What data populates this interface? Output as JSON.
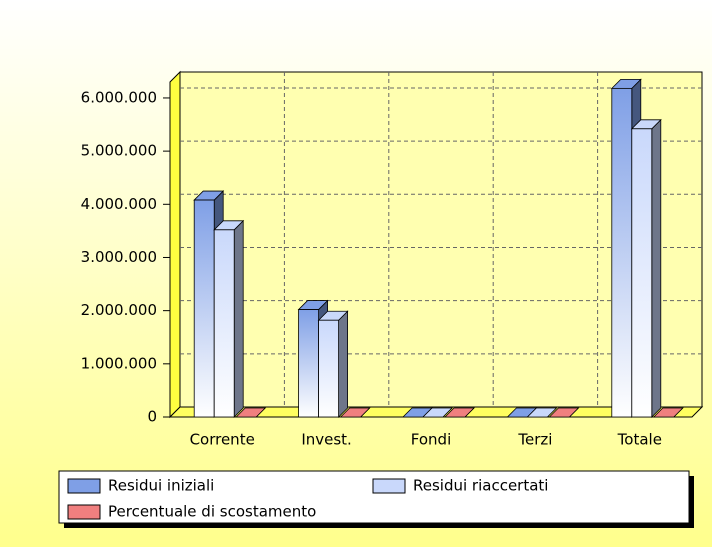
{
  "chart_data": {
    "type": "bar3d",
    "categories": [
      "Corrente",
      "Invest.",
      "Fondi",
      "Terzi",
      "Totale"
    ],
    "series": [
      {
        "name": "Residui iniziali",
        "color": "#7f9fe6",
        "values": [
          4080000,
          2020000,
          0,
          0,
          6180000
        ]
      },
      {
        "name": "Residui riaccertati",
        "color": "#c9d8fb",
        "values": [
          3520000,
          1820000,
          0,
          0,
          5420000
        ]
      },
      {
        "name": "Percentuale di scostamento",
        "color": "#f07f7f",
        "values": [
          0,
          0,
          0,
          0,
          0
        ]
      }
    ],
    "ylim": [
      0,
      6300000
    ],
    "yticks": [
      0,
      {
        "value": 1000000,
        "label": "1.000.000"
      },
      {
        "value": 2000000,
        "label": "2.000.000"
      },
      {
        "value": 3000000,
        "label": "3.000.000"
      },
      {
        "value": 4000000,
        "label": "4.000.000"
      },
      {
        "value": 5000000,
        "label": "5.000.000"
      },
      {
        "value": 6000000,
        "label": "6.000.000"
      }
    ],
    "grid": true,
    "legend": "bottom"
  }
}
